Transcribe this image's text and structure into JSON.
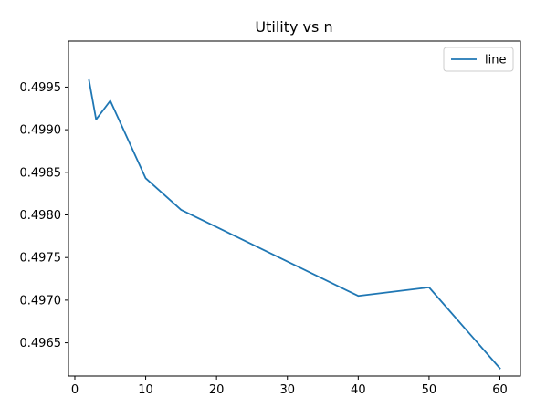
{
  "chart_data": {
    "type": "line",
    "title": "Utility vs n",
    "xlabel": "",
    "ylabel": "",
    "xlim": [
      -0.9,
      62.9
    ],
    "ylim": [
      0.49611,
      0.50004
    ],
    "xticks": [
      0,
      10,
      20,
      30,
      40,
      50,
      60
    ],
    "yticks": [
      0.4965,
      0.497,
      0.4975,
      0.498,
      0.4985,
      0.499,
      0.4995
    ],
    "xtick_labels": [
      "0",
      "10",
      "20",
      "30",
      "40",
      "50",
      "60"
    ],
    "ytick_labels": [
      "0.4965",
      "0.4970",
      "0.4975",
      "0.4980",
      "0.4985",
      "0.4990",
      "0.4995"
    ],
    "grid": false,
    "legend_position": "top-right",
    "series": [
      {
        "name": "line",
        "color": "#1f77b4",
        "x": [
          2,
          3,
          5,
          10,
          15,
          40,
          50,
          60
        ],
        "y": [
          0.49958,
          0.49912,
          0.49934,
          0.49843,
          0.49806,
          0.49705,
          0.49715,
          0.4962
        ]
      }
    ]
  }
}
